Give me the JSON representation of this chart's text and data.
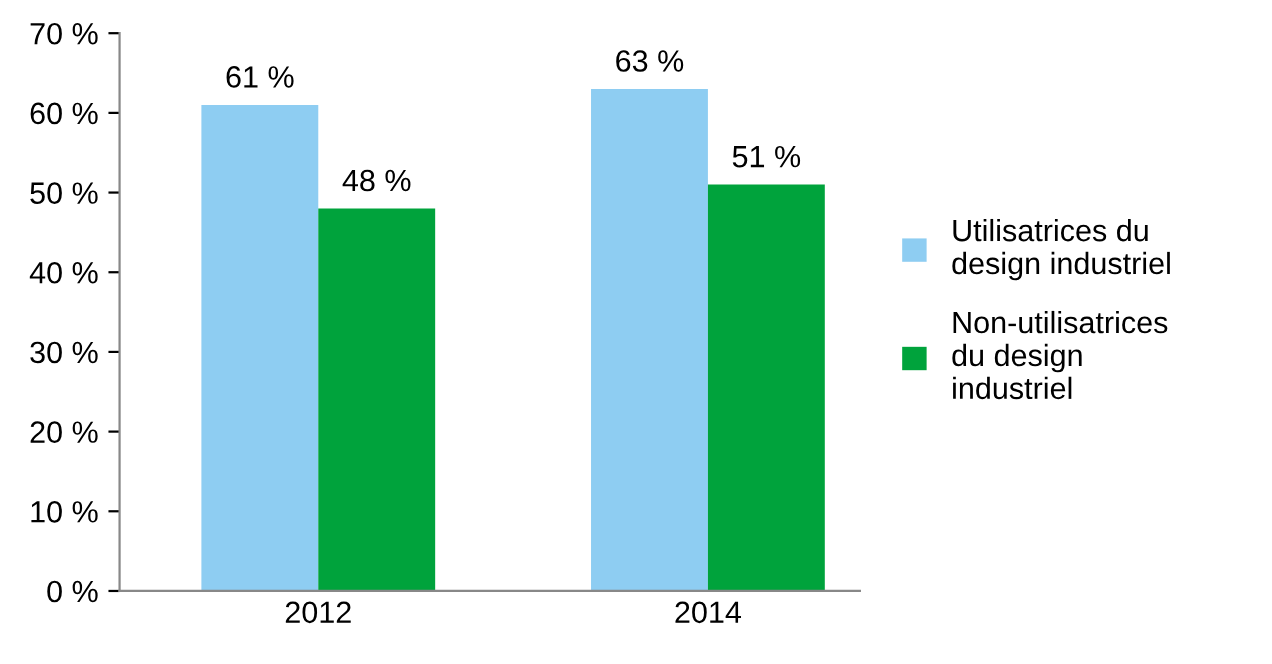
{
  "chart_data": {
    "type": "bar",
    "categories": [
      "2012",
      "2014"
    ],
    "series": [
      {
        "name": "Utilisatrices du\ndesign industriel",
        "color": "#8ecdf2",
        "values": [
          61,
          63
        ],
        "value_labels": [
          "61 %",
          "63 %"
        ]
      },
      {
        "name": "Non-utilisatrices\ndu design\nindustriel",
        "color": "#00a33c",
        "values": [
          48,
          51
        ],
        "value_labels": [
          "48 %",
          "51 %"
        ]
      }
    ],
    "ylim": [
      0,
      70
    ],
    "yticks": [
      {
        "value": 0,
        "label": "0 %"
      },
      {
        "value": 10,
        "label": "10 %"
      },
      {
        "value": 20,
        "label": "20 %"
      },
      {
        "value": 30,
        "label": "30 %"
      },
      {
        "value": 40,
        "label": "40 %"
      },
      {
        "value": 50,
        "label": "50 %"
      },
      {
        "value": 60,
        "label": "60 %"
      },
      {
        "value": 70,
        "label": "70 %"
      }
    ],
    "grid": false,
    "legend": "right"
  }
}
